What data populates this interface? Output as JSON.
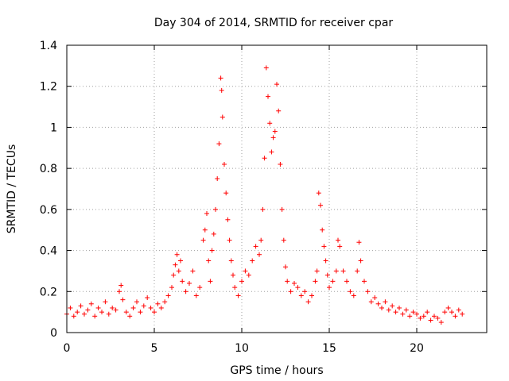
{
  "chart_data": {
    "type": "scatter",
    "title": "Day 304 of 2014, SRMTID for receiver cpar",
    "xlabel": "GPS time / hours",
    "ylabel": "SRMTID / TECUs",
    "xlim": [
      0,
      24
    ],
    "ylim": [
      0,
      1.4
    ],
    "xticks": [
      0,
      5,
      10,
      15,
      20
    ],
    "xtick_labels": [
      "0",
      "5",
      "10",
      "15",
      "20"
    ],
    "yticks": [
      0,
      0.2,
      0.4,
      0.6,
      0.8,
      1,
      1.2,
      1.4
    ],
    "ytick_labels": [
      "0",
      "0.2",
      "0.4",
      "0.6",
      "0.8",
      "1",
      "1.2",
      "1.4"
    ],
    "grid": true,
    "marker": "+",
    "series": [
      {
        "name": "SRMTID",
        "color": "#ff0000",
        "points": [
          [
            0.0,
            0.09
          ],
          [
            0.2,
            0.12
          ],
          [
            0.4,
            0.08
          ],
          [
            0.6,
            0.1
          ],
          [
            0.8,
            0.13
          ],
          [
            1.0,
            0.09
          ],
          [
            1.2,
            0.11
          ],
          [
            1.4,
            0.14
          ],
          [
            1.6,
            0.08
          ],
          [
            1.8,
            0.12
          ],
          [
            2.0,
            0.1
          ],
          [
            2.2,
            0.15
          ],
          [
            2.4,
            0.09
          ],
          [
            2.6,
            0.12
          ],
          [
            2.8,
            0.11
          ],
          [
            3.0,
            0.2
          ],
          [
            3.1,
            0.23
          ],
          [
            3.2,
            0.16
          ],
          [
            3.4,
            0.1
          ],
          [
            3.6,
            0.08
          ],
          [
            3.8,
            0.12
          ],
          [
            4.0,
            0.15
          ],
          [
            4.2,
            0.1
          ],
          [
            4.4,
            0.13
          ],
          [
            4.6,
            0.17
          ],
          [
            4.8,
            0.12
          ],
          [
            5.0,
            0.1
          ],
          [
            5.2,
            0.14
          ],
          [
            5.4,
            0.12
          ],
          [
            5.6,
            0.15
          ],
          [
            5.8,
            0.18
          ],
          [
            6.0,
            0.22
          ],
          [
            6.1,
            0.28
          ],
          [
            6.2,
            0.33
          ],
          [
            6.3,
            0.38
          ],
          [
            6.4,
            0.3
          ],
          [
            6.5,
            0.35
          ],
          [
            6.6,
            0.25
          ],
          [
            6.8,
            0.2
          ],
          [
            7.0,
            0.24
          ],
          [
            7.2,
            0.3
          ],
          [
            7.4,
            0.18
          ],
          [
            7.6,
            0.22
          ],
          [
            7.8,
            0.45
          ],
          [
            7.9,
            0.5
          ],
          [
            8.0,
            0.58
          ],
          [
            8.1,
            0.35
          ],
          [
            8.2,
            0.25
          ],
          [
            8.3,
            0.4
          ],
          [
            8.4,
            0.48
          ],
          [
            8.5,
            0.6
          ],
          [
            8.6,
            0.75
          ],
          [
            8.7,
            0.92
          ],
          [
            8.8,
            1.24
          ],
          [
            8.85,
            1.18
          ],
          [
            8.9,
            1.05
          ],
          [
            9.0,
            0.82
          ],
          [
            9.1,
            0.68
          ],
          [
            9.2,
            0.55
          ],
          [
            9.3,
            0.45
          ],
          [
            9.4,
            0.35
          ],
          [
            9.5,
            0.28
          ],
          [
            9.6,
            0.22
          ],
          [
            9.8,
            0.18
          ],
          [
            10.0,
            0.25
          ],
          [
            10.2,
            0.3
          ],
          [
            10.4,
            0.28
          ],
          [
            10.6,
            0.35
          ],
          [
            10.8,
            0.42
          ],
          [
            11.0,
            0.38
          ],
          [
            11.1,
            0.45
          ],
          [
            11.2,
            0.6
          ],
          [
            11.3,
            0.85
          ],
          [
            11.4,
            1.29
          ],
          [
            11.5,
            1.15
          ],
          [
            11.6,
            1.02
          ],
          [
            11.7,
            0.88
          ],
          [
            11.8,
            0.95
          ],
          [
            11.9,
            0.98
          ],
          [
            12.0,
            1.21
          ],
          [
            12.1,
            1.08
          ],
          [
            12.2,
            0.82
          ],
          [
            12.3,
            0.6
          ],
          [
            12.4,
            0.45
          ],
          [
            12.5,
            0.32
          ],
          [
            12.6,
            0.25
          ],
          [
            12.8,
            0.2
          ],
          [
            13.0,
            0.24
          ],
          [
            13.2,
            0.22
          ],
          [
            13.4,
            0.18
          ],
          [
            13.6,
            0.2
          ],
          [
            13.8,
            0.15
          ],
          [
            14.0,
            0.18
          ],
          [
            14.2,
            0.25
          ],
          [
            14.3,
            0.3
          ],
          [
            14.4,
            0.68
          ],
          [
            14.5,
            0.62
          ],
          [
            14.6,
            0.5
          ],
          [
            14.7,
            0.42
          ],
          [
            14.8,
            0.35
          ],
          [
            14.9,
            0.28
          ],
          [
            15.0,
            0.22
          ],
          [
            15.2,
            0.25
          ],
          [
            15.4,
            0.3
          ],
          [
            15.5,
            0.45
          ],
          [
            15.6,
            0.42
          ],
          [
            15.8,
            0.3
          ],
          [
            16.0,
            0.25
          ],
          [
            16.2,
            0.2
          ],
          [
            16.4,
            0.18
          ],
          [
            16.6,
            0.3
          ],
          [
            16.7,
            0.44
          ],
          [
            16.8,
            0.35
          ],
          [
            17.0,
            0.25
          ],
          [
            17.2,
            0.2
          ],
          [
            17.4,
            0.15
          ],
          [
            17.6,
            0.17
          ],
          [
            17.8,
            0.14
          ],
          [
            18.0,
            0.12
          ],
          [
            18.2,
            0.15
          ],
          [
            18.4,
            0.11
          ],
          [
            18.6,
            0.13
          ],
          [
            18.8,
            0.1
          ],
          [
            19.0,
            0.12
          ],
          [
            19.2,
            0.09
          ],
          [
            19.4,
            0.11
          ],
          [
            19.6,
            0.08
          ],
          [
            19.8,
            0.1
          ],
          [
            20.0,
            0.09
          ],
          [
            20.2,
            0.07
          ],
          [
            20.4,
            0.08
          ],
          [
            20.6,
            0.1
          ],
          [
            20.8,
            0.06
          ],
          [
            21.0,
            0.08
          ],
          [
            21.2,
            0.07
          ],
          [
            21.4,
            0.05
          ],
          [
            21.6,
            0.1
          ],
          [
            21.8,
            0.12
          ],
          [
            22.0,
            0.1
          ],
          [
            22.2,
            0.08
          ],
          [
            22.4,
            0.11
          ],
          [
            22.6,
            0.09
          ]
        ]
      }
    ]
  }
}
